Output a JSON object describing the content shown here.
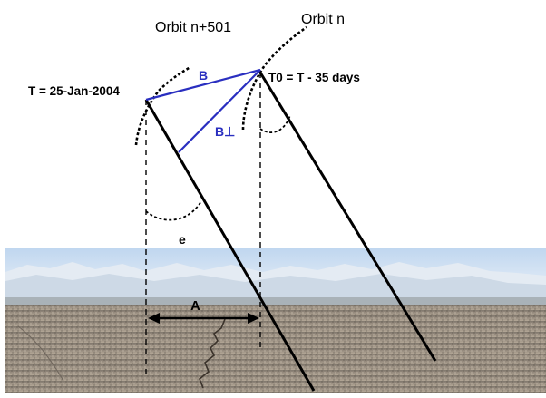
{
  "labels": {
    "orbit_left": "Orbit n+501",
    "orbit_right": "Orbit n",
    "time_left": "T = 25-Jan-2004",
    "time_right": "T0 = T - 35 days",
    "baseline": "B",
    "baseline_perp": "B⊥",
    "angle": "e",
    "distance": "A"
  },
  "colors": {
    "baseline": "#2a2fc0",
    "lines": "#000000",
    "sky_top": "#c7dcf2",
    "sky_bottom": "#e9f1f8",
    "mountains": "#dfe7f0",
    "ground": "#8a7f72"
  }
}
